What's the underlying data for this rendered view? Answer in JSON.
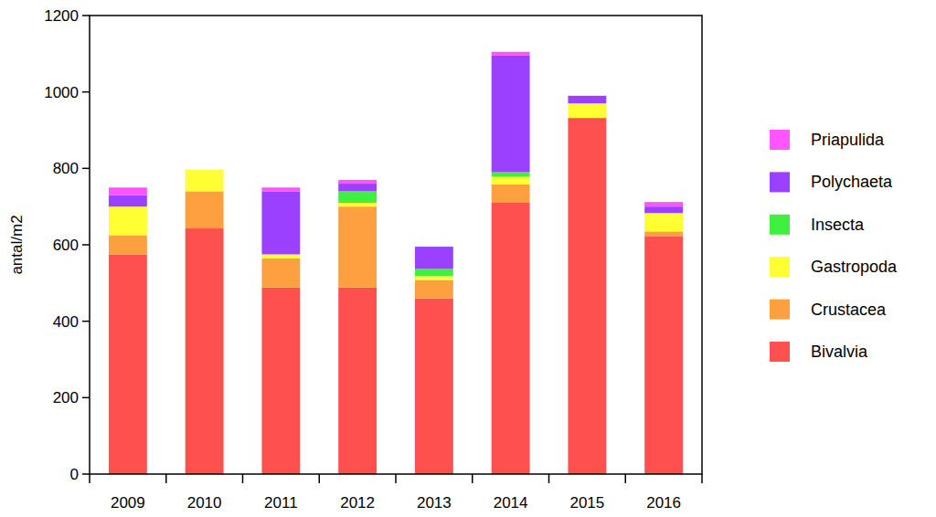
{
  "chart_data": {
    "type": "bar",
    "stacked": true,
    "y_label": "antal/m2",
    "categories": [
      "2009",
      "2010",
      "2011",
      "2012",
      "2013",
      "2014",
      "2015",
      "2016"
    ],
    "series": [
      {
        "name": "Bivalvia",
        "color": "#ff5050",
        "values": [
          575,
          643,
          488,
          488,
          460,
          710,
          932,
          623
        ]
      },
      {
        "name": "Crustacea",
        "color": "#ffa040",
        "values": [
          50,
          97,
          77,
          212,
          48,
          48,
          0,
          12
        ]
      },
      {
        "name": "Gastropoda",
        "color": "#ffff33",
        "values": [
          75,
          57,
          10,
          10,
          10,
          20,
          38,
          48
        ]
      },
      {
        "name": "Insecta",
        "color": "#40f040",
        "values": [
          0,
          0,
          0,
          30,
          19,
          12,
          0,
          0
        ]
      },
      {
        "name": "Polychaeta",
        "color": "#9b40ff",
        "values": [
          30,
          0,
          165,
          20,
          58,
          305,
          20,
          17
        ]
      },
      {
        "name": "Priapulida",
        "color": "#ff55ff",
        "values": [
          20,
          0,
          10,
          10,
          0,
          10,
          0,
          12
        ]
      }
    ],
    "ylim": [
      0,
      1200
    ],
    "yticks": [
      0,
      200,
      400,
      600,
      800,
      1000,
      1200
    ],
    "grid": false,
    "legend": "right"
  }
}
